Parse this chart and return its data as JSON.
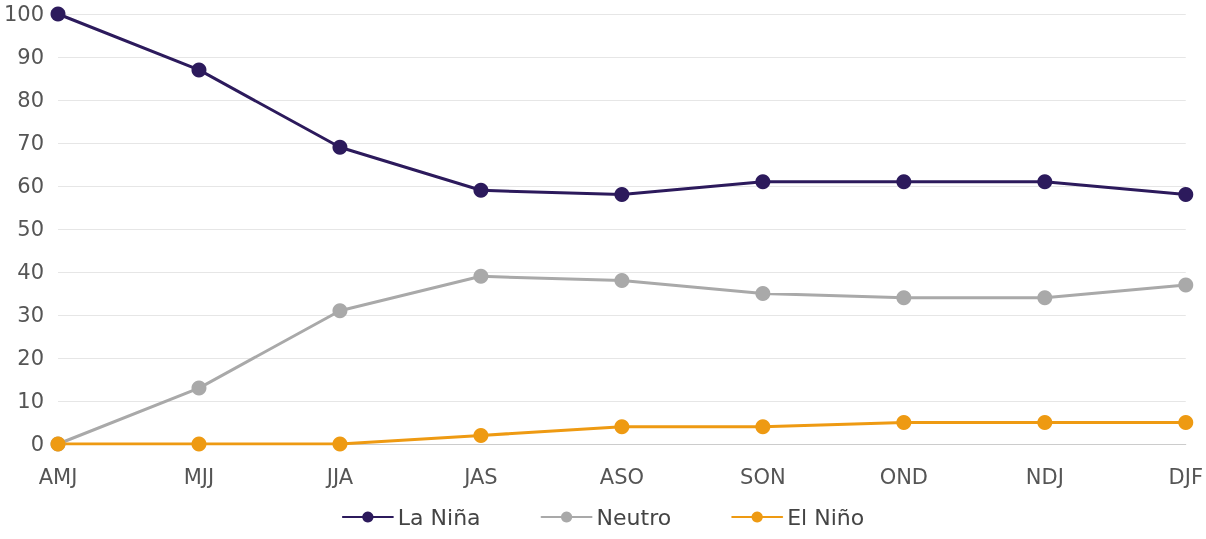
{
  "chart_data": {
    "type": "line",
    "categories": [
      "AMJ",
      "MJJ",
      "JJA",
      "JAS",
      "ASO",
      "SON",
      "OND",
      "NDJ",
      "DJF"
    ],
    "series": [
      {
        "name": "La Niña",
        "color": "#2c1a5c",
        "values": [
          100,
          87,
          69,
          59,
          58,
          61,
          61,
          61,
          58
        ]
      },
      {
        "name": "Neutro",
        "color": "#a9a9a9",
        "values": [
          0,
          13,
          31,
          39,
          38,
          35,
          34,
          34,
          37
        ]
      },
      {
        "name": "El Niño",
        "color": "#ee9a12",
        "values": [
          0,
          0,
          0,
          2,
          4,
          4,
          5,
          5,
          5
        ]
      }
    ],
    "ylim": [
      0,
      100
    ],
    "yticks": [
      0,
      10,
      20,
      30,
      40,
      50,
      60,
      70,
      80,
      90,
      100
    ],
    "grid": "y",
    "legend": "bottom",
    "marker": "circle",
    "line_style": "solid"
  }
}
